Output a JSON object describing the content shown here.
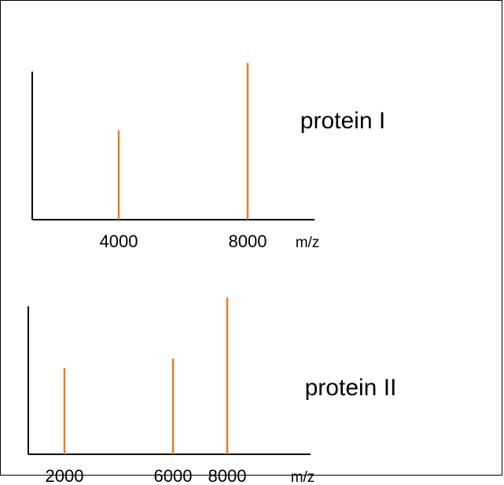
{
  "chart_data": [
    {
      "type": "bar",
      "title": "protein I",
      "xlabel": "m/z",
      "ylabel": "",
      "x": [
        4000,
        8000
      ],
      "values": [
        0.57,
        1.0
      ],
      "x_ticks": [
        "4000",
        "8000"
      ],
      "grid": false,
      "bar_color": "#ee7a2b"
    },
    {
      "type": "bar",
      "title": "protein II",
      "xlabel": "m/z",
      "ylabel": "",
      "x": [
        2000,
        6000,
        8000
      ],
      "values": [
        0.55,
        0.61,
        1.0
      ],
      "x_ticks": [
        "2000",
        "6000",
        "8000"
      ],
      "grid": false,
      "bar_color": "#ee7a2b"
    }
  ]
}
